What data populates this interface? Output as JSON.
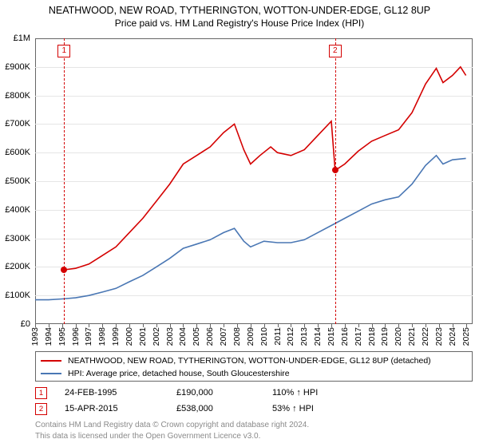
{
  "title": {
    "line1": "NEATHWOOD, NEW ROAD, TYTHERINGTON, WOTTON-UNDER-EDGE, GL12 8UP",
    "line2": "Price paid vs. HM Land Registry's House Price Index (HPI)",
    "fontsize_line1": 12.5,
    "fontsize_line2": 12,
    "color": "#000000"
  },
  "chart": {
    "type": "line",
    "background_color": "#ffffff",
    "border_color": "#666666",
    "grid_color": "#e5e5e5",
    "xlim": [
      1993,
      2025.5
    ],
    "ylim": [
      0,
      1000000
    ],
    "y_ticks": [
      0,
      100000,
      200000,
      300000,
      400000,
      500000,
      600000,
      700000,
      800000,
      900000,
      1000000
    ],
    "y_tick_labels": [
      "£0",
      "£100K",
      "£200K",
      "£300K",
      "£400K",
      "£500K",
      "£600K",
      "£700K",
      "£800K",
      "£900K",
      "£1M"
    ],
    "x_ticks": [
      1993,
      1994,
      1995,
      1996,
      1997,
      1998,
      1999,
      2000,
      2001,
      2002,
      2003,
      2004,
      2005,
      2006,
      2007,
      2008,
      2009,
      2010,
      2011,
      2012,
      2013,
      2014,
      2015,
      2016,
      2017,
      2018,
      2019,
      2020,
      2021,
      2022,
      2023,
      2024,
      2025
    ],
    "x_tick_labels": [
      "1993",
      "1994",
      "1995",
      "1996",
      "1997",
      "1998",
      "1999",
      "2000",
      "2001",
      "2002",
      "2003",
      "2004",
      "2005",
      "2006",
      "2007",
      "2008",
      "2009",
      "2010",
      "2011",
      "2012",
      "2013",
      "2014",
      "2015",
      "2016",
      "2017",
      "2018",
      "2019",
      "2020",
      "2021",
      "2022",
      "2023",
      "2024",
      "2025"
    ],
    "tick_fontsize": 11,
    "series": [
      {
        "name": "property",
        "color": "#d40000",
        "line_width": 1.6,
        "points": [
          [
            1995.15,
            190000
          ],
          [
            1996,
            195000
          ],
          [
            1997,
            210000
          ],
          [
            1998,
            240000
          ],
          [
            1999,
            270000
          ],
          [
            2000,
            320000
          ],
          [
            2001,
            370000
          ],
          [
            2002,
            430000
          ],
          [
            2003,
            490000
          ],
          [
            2004,
            560000
          ],
          [
            2005,
            590000
          ],
          [
            2006,
            620000
          ],
          [
            2007,
            670000
          ],
          [
            2007.8,
            700000
          ],
          [
            2008.5,
            610000
          ],
          [
            2009,
            560000
          ],
          [
            2009.7,
            590000
          ],
          [
            2010.5,
            620000
          ],
          [
            2011,
            600000
          ],
          [
            2012,
            590000
          ],
          [
            2013,
            610000
          ],
          [
            2014,
            660000
          ],
          [
            2015,
            710000
          ],
          [
            2015.29,
            538000
          ],
          [
            2016,
            560000
          ],
          [
            2017,
            605000
          ],
          [
            2018,
            640000
          ],
          [
            2019,
            660000
          ],
          [
            2020,
            680000
          ],
          [
            2021,
            740000
          ],
          [
            2022,
            840000
          ],
          [
            2022.8,
            895000
          ],
          [
            2023.3,
            845000
          ],
          [
            2024,
            870000
          ],
          [
            2024.6,
            900000
          ],
          [
            2025,
            870000
          ]
        ]
      },
      {
        "name": "hpi",
        "color": "#4a77b4",
        "line_width": 1.6,
        "points": [
          [
            1993,
            85000
          ],
          [
            1994,
            85000
          ],
          [
            1995,
            88000
          ],
          [
            1996,
            92000
          ],
          [
            1997,
            100000
          ],
          [
            1998,
            112000
          ],
          [
            1999,
            125000
          ],
          [
            2000,
            148000
          ],
          [
            2001,
            170000
          ],
          [
            2002,
            200000
          ],
          [
            2003,
            230000
          ],
          [
            2004,
            265000
          ],
          [
            2005,
            280000
          ],
          [
            2006,
            295000
          ],
          [
            2007,
            320000
          ],
          [
            2007.8,
            335000
          ],
          [
            2008.5,
            290000
          ],
          [
            2009,
            270000
          ],
          [
            2010,
            290000
          ],
          [
            2011,
            285000
          ],
          [
            2012,
            285000
          ],
          [
            2013,
            295000
          ],
          [
            2014,
            320000
          ],
          [
            2015,
            345000
          ],
          [
            2016,
            370000
          ],
          [
            2017,
            395000
          ],
          [
            2018,
            420000
          ],
          [
            2019,
            435000
          ],
          [
            2020,
            445000
          ],
          [
            2021,
            490000
          ],
          [
            2022,
            555000
          ],
          [
            2022.8,
            590000
          ],
          [
            2023.3,
            560000
          ],
          [
            2024,
            575000
          ],
          [
            2025,
            580000
          ]
        ]
      }
    ],
    "markers": [
      {
        "n": "1",
        "x": 1995.15,
        "y": 190000,
        "color": "#d40000"
      },
      {
        "n": "2",
        "x": 2015.29,
        "y": 538000,
        "color": "#d40000"
      }
    ]
  },
  "legend": {
    "border_color": "#666666",
    "fontsize": 10.5,
    "items": [
      {
        "color": "#d40000",
        "label": "NEATHWOOD, NEW ROAD, TYTHERINGTON, WOTTON-UNDER-EDGE, GL12 8UP (detached)"
      },
      {
        "color": "#4a77b4",
        "label": "HPI: Average price, detached house, South Gloucestershire"
      }
    ]
  },
  "sales": [
    {
      "n": "1",
      "color": "#d40000",
      "date": "24-FEB-1995",
      "price": "£190,000",
      "hpi": "110% ↑ HPI"
    },
    {
      "n": "2",
      "color": "#d40000",
      "date": "15-APR-2015",
      "price": "£538,000",
      "hpi": "53% ↑ HPI"
    }
  ],
  "footer": {
    "line1": "Contains HM Land Registry data © Crown copyright and database right 2024.",
    "line2": "This data is licensed under the Open Government Licence v3.0.",
    "color": "#8a8a8a",
    "fontsize": 10
  }
}
